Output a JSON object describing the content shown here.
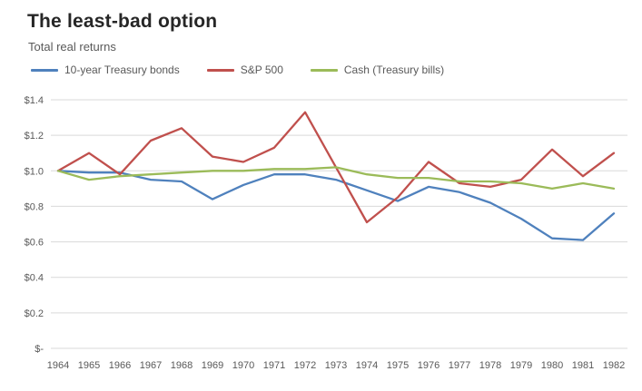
{
  "title": "The least-bad option",
  "subtitle": "Total real returns",
  "chart_data": {
    "type": "line",
    "x": [
      "1964",
      "1965",
      "1966",
      "1967",
      "1968",
      "1969",
      "1970",
      "1971",
      "1972",
      "1973",
      "1974",
      "1975",
      "1976",
      "1977",
      "1978",
      "1979",
      "1980",
      "1981",
      "1982"
    ],
    "series": [
      {
        "name": "10-year Treasury bonds",
        "color": "#4f81bd",
        "values": [
          1.0,
          0.99,
          0.99,
          0.95,
          0.94,
          0.84,
          0.92,
          0.98,
          0.98,
          0.95,
          0.89,
          0.83,
          0.91,
          0.88,
          0.82,
          0.73,
          0.62,
          0.61,
          0.76
        ]
      },
      {
        "name": "S&P 500",
        "color": "#c0504d",
        "values": [
          1.0,
          1.1,
          0.98,
          1.17,
          1.24,
          1.08,
          1.05,
          1.13,
          1.33,
          1.02,
          0.71,
          0.85,
          1.05,
          0.93,
          0.91,
          0.95,
          1.12,
          0.97,
          1.1
        ]
      },
      {
        "name": "Cash (Treasury bills)",
        "color": "#9bbb59",
        "values": [
          1.0,
          0.95,
          0.97,
          0.98,
          0.99,
          1.0,
          1.0,
          1.01,
          1.01,
          1.02,
          0.98,
          0.96,
          0.96,
          0.94,
          0.94,
          0.93,
          0.9,
          0.93,
          0.9
        ]
      }
    ],
    "ylim": [
      0,
      1.4
    ],
    "yticks": [
      0,
      0.2,
      0.4,
      0.6,
      0.8,
      1.0,
      1.2,
      1.4
    ],
    "ytick_labels": [
      "$-",
      "$0.2",
      "$0.4",
      "$0.6",
      "$0.8",
      "$1.0",
      "$1.2",
      "$1.4"
    ],
    "grid": true,
    "legend_position": "top-left",
    "colors": {
      "gridline": "#d9d9d9",
      "axis_text": "#595959",
      "title_text": "#262626"
    }
  }
}
